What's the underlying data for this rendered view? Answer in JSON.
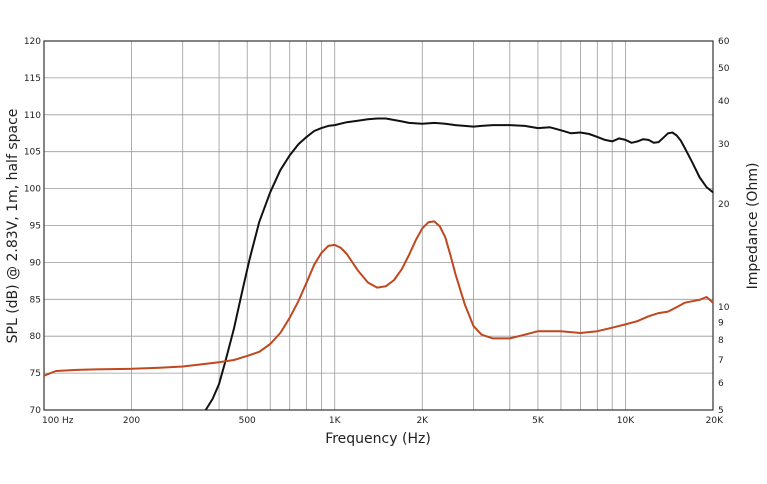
{
  "chart_data": {
    "type": "line",
    "xlabel": "Frequency (Hz)",
    "ylabel_left": "SPL (dB) @ 2.83V, 1m, half space",
    "ylabel_right": "Impedance (Ohm)",
    "xscale": "log",
    "xlim": [
      100,
      20000
    ],
    "ylim_left": [
      70,
      120
    ],
    "ylim_right": [
      5,
      60
    ],
    "yscale_right": "log",
    "grid": true,
    "x_ticks": [
      {
        "value": 100,
        "label": "100  Hz"
      },
      {
        "value": 200,
        "label": "200"
      },
      {
        "value": 500,
        "label": "500"
      },
      {
        "value": 1000,
        "label": "1K"
      },
      {
        "value": 2000,
        "label": "2K"
      },
      {
        "value": 5000,
        "label": "5K"
      },
      {
        "value": 10000,
        "label": "10K"
      },
      {
        "value": 20000,
        "label": "20K"
      }
    ],
    "y_ticks_left": [
      70,
      75,
      80,
      85,
      90,
      95,
      100,
      105,
      110,
      115,
      120
    ],
    "y_ticks_right": [
      {
        "value": 5,
        "label": "5"
      },
      {
        "value": 6,
        "label": "6"
      },
      {
        "value": 7,
        "label": "7"
      },
      {
        "value": 8,
        "label": "8"
      },
      {
        "value": 9,
        "label": "9"
      },
      {
        "value": 10,
        "label": "10"
      },
      {
        "value": 20,
        "label": "20"
      },
      {
        "value": 30,
        "label": "30"
      },
      {
        "value": 40,
        "label": "40"
      },
      {
        "value": 50,
        "label": "50"
      },
      {
        "value": 60,
        "label": "60"
      }
    ],
    "series": [
      {
        "axis": "left",
        "color": "#111111",
        "x": [
          360,
          380,
          400,
          420,
          450,
          480,
          510,
          550,
          600,
          650,
          700,
          750,
          800,
          850,
          900,
          950,
          1000,
          1100,
          1200,
          1300,
          1400,
          1500,
          1600,
          1700,
          1800,
          2000,
          2200,
          2400,
          2600,
          2800,
          3000,
          3200,
          3500,
          4000,
          4500,
          5000,
          5500,
          6000,
          6500,
          7000,
          7500,
          8000,
          8500,
          9000,
          9500,
          10000,
          10500,
          11000,
          11500,
          12000,
          12500,
          13000,
          13500,
          14000,
          14500,
          15000,
          15500,
          16000,
          17000,
          18000,
          19000,
          20000
        ],
        "values": [
          70,
          71.5,
          73.5,
          76.5,
          81,
          86,
          90.5,
          95.5,
          99.5,
          102.5,
          104.5,
          106,
          107,
          107.8,
          108.2,
          108.5,
          108.6,
          109,
          109.2,
          109.4,
          109.5,
          109.5,
          109.3,
          109.1,
          108.9,
          108.8,
          108.9,
          108.8,
          108.6,
          108.5,
          108.4,
          108.5,
          108.6,
          108.6,
          108.5,
          108.2,
          108.3,
          107.9,
          107.5,
          107.6,
          107.4,
          107,
          106.6,
          106.4,
          106.8,
          106.6,
          106.2,
          106.4,
          106.7,
          106.6,
          106.2,
          106.3,
          106.9,
          107.5,
          107.6,
          107.2,
          106.5,
          105.5,
          103.5,
          101.5,
          100.2,
          99.5
        ]
      },
      {
        "axis": "right",
        "color": "#c0471f",
        "x": [
          100,
          110,
          130,
          150,
          200,
          250,
          300,
          350,
          400,
          450,
          500,
          550,
          600,
          650,
          700,
          750,
          800,
          850,
          900,
          950,
          1000,
          1050,
          1100,
          1200,
          1300,
          1400,
          1500,
          1600,
          1700,
          1800,
          1900,
          2000,
          2100,
          2200,
          2300,
          2400,
          2500,
          2600,
          2800,
          3000,
          3200,
          3500,
          4000,
          4500,
          5000,
          6000,
          7000,
          8000,
          9000,
          10000,
          11000,
          12000,
          13000,
          14000,
          15000,
          16000,
          17000,
          18000,
          19000,
          20000
        ],
        "values": [
          6.3,
          6.5,
          6.55,
          6.57,
          6.6,
          6.65,
          6.7,
          6.8,
          6.9,
          7.0,
          7.2,
          7.4,
          7.8,
          8.4,
          9.3,
          10.4,
          11.8,
          13.3,
          14.4,
          15.1,
          15.2,
          14.9,
          14.3,
          12.8,
          11.8,
          11.4,
          11.5,
          12.0,
          12.9,
          14.2,
          15.7,
          17.0,
          17.7,
          17.8,
          17.2,
          16.0,
          14.2,
          12.5,
          10.2,
          8.8,
          8.3,
          8.1,
          8.1,
          8.3,
          8.5,
          8.5,
          8.4,
          8.5,
          8.7,
          8.9,
          9.1,
          9.4,
          9.6,
          9.7,
          10.0,
          10.3,
          10.4,
          10.5,
          10.7,
          10.3
        ]
      }
    ]
  }
}
